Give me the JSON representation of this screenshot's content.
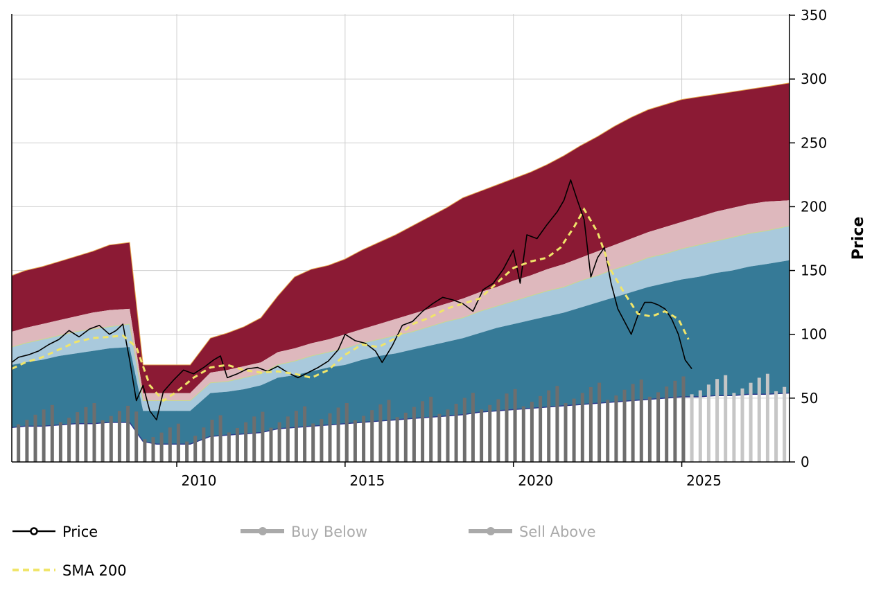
{
  "chart_data": {
    "type": "area",
    "title": "",
    "xlabel": "",
    "ylabel": "Price",
    "xlim": [
      2005.1,
      2028.2
    ],
    "ylim": [
      0,
      350
    ],
    "x_ticks": [
      2010,
      2015,
      2020,
      2025
    ],
    "y_ticks": [
      0,
      50,
      100,
      150,
      200,
      250,
      300,
      350
    ],
    "grid": true,
    "legend": [
      {
        "name": "Price",
        "active": true
      },
      {
        "name": "Buy Below",
        "active": false
      },
      {
        "name": "Sell Above",
        "active": false
      },
      {
        "name": "SMA 200",
        "active": true
      }
    ],
    "valuation_bands": {
      "x": [
        2005.1,
        2005.5,
        2006.0,
        2006.5,
        2007.0,
        2007.5,
        2008.0,
        2008.6,
        2009.0,
        2009.4,
        2010.0,
        2010.4,
        2011.0,
        2011.5,
        2012.0,
        2012.5,
        2013.0,
        2013.5,
        2014.0,
        2014.5,
        2015.0,
        2015.5,
        2016.0,
        2016.5,
        2017.0,
        2017.5,
        2018.0,
        2018.5,
        2019.0,
        2019.5,
        2020.0,
        2020.5,
        2021.0,
        2021.5,
        2022.0,
        2022.5,
        2023.0,
        2023.5,
        2024.0,
        2024.5,
        2025.0,
        2025.5,
        2026.0,
        2026.5,
        2027.0,
        2027.5,
        2028.2
      ],
      "base": [
        27,
        28,
        28,
        29,
        30,
        30,
        31,
        31,
        16,
        14,
        14,
        14,
        20,
        21,
        22,
        23,
        26,
        27,
        28,
        29,
        30,
        31,
        32,
        33,
        34,
        35,
        36,
        37,
        39,
        40,
        41,
        42,
        43,
        44,
        45,
        46,
        47,
        48,
        49,
        50,
        51,
        51,
        52,
        52,
        53,
        53,
        54
      ],
      "fair_low": [
        76,
        78,
        80,
        83,
        85,
        87,
        89,
        90,
        40,
        40,
        40,
        40,
        54,
        55,
        57,
        60,
        66,
        68,
        71,
        74,
        76,
        80,
        83,
        85,
        88,
        91,
        94,
        97,
        101,
        105,
        108,
        111,
        114,
        117,
        121,
        125,
        129,
        133,
        137,
        140,
        143,
        145,
        148,
        150,
        153,
        155,
        158
      ],
      "fair_high": [
        90,
        93,
        96,
        99,
        102,
        104,
        106,
        108,
        48,
        48,
        48,
        48,
        62,
        63,
        66,
        69,
        76,
        79,
        83,
        86,
        89,
        93,
        96,
        99,
        102,
        106,
        110,
        113,
        118,
        122,
        126,
        130,
        134,
        137,
        142,
        146,
        151,
        155,
        160,
        163,
        167,
        170,
        173,
        176,
        179,
        181,
        185
      ],
      "high": [
        102,
        105,
        108,
        111,
        114,
        117,
        119,
        120,
        54,
        54,
        54,
        54,
        70,
        72,
        75,
        78,
        86,
        89,
        93,
        96,
        100,
        104,
        108,
        112,
        116,
        120,
        124,
        128,
        133,
        137,
        142,
        146,
        151,
        155,
        160,
        165,
        170,
        175,
        180,
        184,
        188,
        192,
        196,
        199,
        202,
        204,
        205
      ],
      "top": [
        146,
        150,
        153,
        157,
        161,
        165,
        170,
        172,
        76,
        76,
        76,
        76,
        97,
        101,
        106,
        113,
        130,
        145,
        151,
        154,
        159,
        166,
        172,
        178,
        185,
        192,
        199,
        207,
        212,
        217,
        222,
        227,
        233,
        240,
        248,
        255,
        263,
        270,
        276,
        280,
        284,
        286,
        288,
        290,
        292,
        294,
        297
      ]
    },
    "price": {
      "x": [
        2005.1,
        2005.3,
        2005.6,
        2005.9,
        2006.2,
        2006.5,
        2006.8,
        2007.1,
        2007.4,
        2007.7,
        2008.0,
        2008.2,
        2008.4,
        2008.6,
        2008.8,
        2009.0,
        2009.2,
        2009.4,
        2009.6,
        2009.9,
        2010.2,
        2010.5,
        2010.8,
        2011.1,
        2011.3,
        2011.5,
        2011.8,
        2012.1,
        2012.4,
        2012.7,
        2013.0,
        2013.3,
        2013.6,
        2013.9,
        2014.2,
        2014.5,
        2014.8,
        2015.0,
        2015.3,
        2015.6,
        2015.9,
        2016.1,
        2016.4,
        2016.7,
        2017.0,
        2017.3,
        2017.6,
        2017.9,
        2018.2,
        2018.5,
        2018.8,
        2019.1,
        2019.4,
        2019.7,
        2020.0,
        2020.2,
        2020.4,
        2020.7,
        2021.0,
        2021.3,
        2021.5,
        2021.7,
        2021.9,
        2022.1,
        2022.3,
        2022.5,
        2022.7,
        2022.9,
        2023.1,
        2023.3,
        2023.5,
        2023.7,
        2023.9,
        2024.1,
        2024.3,
        2024.5,
        2024.7,
        2024.9,
        2025.1,
        2025.3
      ],
      "y": [
        78,
        82,
        84,
        87,
        92,
        96,
        103,
        98,
        104,
        107,
        100,
        103,
        108,
        80,
        48,
        60,
        40,
        33,
        55,
        64,
        72,
        69,
        74,
        80,
        83,
        66,
        69,
        73,
        74,
        71,
        75,
        70,
        66,
        70,
        74,
        79,
        88,
        100,
        95,
        93,
        87,
        78,
        91,
        107,
        110,
        118,
        124,
        129,
        127,
        124,
        118,
        135,
        140,
        151,
        166,
        140,
        178,
        175,
        186,
        196,
        205,
        221,
        205,
        190,
        145,
        160,
        168,
        140,
        120,
        110,
        100,
        115,
        125,
        125,
        123,
        120,
        112,
        100,
        80,
        73
      ]
    },
    "sma_200": {
      "x": [
        2005.1,
        2005.5,
        2006.0,
        2006.5,
        2007.0,
        2007.5,
        2008.0,
        2008.4,
        2008.8,
        2009.2,
        2009.6,
        2010.0,
        2010.5,
        2011.0,
        2011.5,
        2012.0,
        2012.5,
        2013.0,
        2013.5,
        2014.0,
        2014.5,
        2015.0,
        2015.5,
        2016.0,
        2016.5,
        2017.0,
        2017.5,
        2018.0,
        2018.5,
        2019.0,
        2019.5,
        2020.0,
        2020.5,
        2021.0,
        2021.4,
        2021.8,
        2022.1,
        2022.5,
        2022.9,
        2023.3,
        2023.7,
        2024.1,
        2024.5,
        2024.9,
        2025.2
      ],
      "y": [
        73,
        78,
        82,
        88,
        94,
        97,
        98,
        99,
        90,
        60,
        48,
        55,
        66,
        74,
        76,
        72,
        70,
        71,
        69,
        66,
        72,
        84,
        92,
        90,
        97,
        108,
        113,
        120,
        124,
        128,
        140,
        152,
        157,
        160,
        168,
        184,
        198,
        180,
        150,
        132,
        116,
        114,
        118,
        112,
        96
      ]
    },
    "buy_below_bars": {
      "x_start": 2005.3,
      "step": 0.25,
      "solid_until": 2025.1,
      "note": "bars follow the band base with a 2–16 offset"
    }
  }
}
